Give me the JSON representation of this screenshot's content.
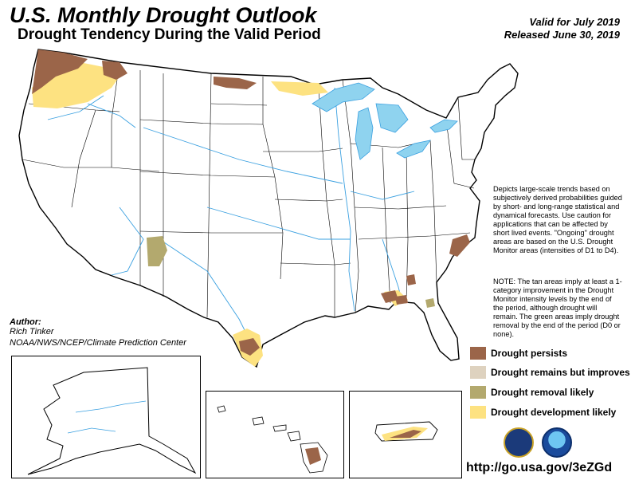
{
  "header": {
    "title": "U.S. Monthly Drought Outlook",
    "subtitle": "Drought Tendency During the Valid Period",
    "valid": "Valid for July 2019",
    "released": "Released June 30, 2019"
  },
  "description": "Depicts large-scale trends based on subjectively derived probabilities guided by short- and long-range statistical and dynamical forecasts. Use caution for applications that can be affected by short lived events. \"Ongoing\" drought areas are based on the U.S. Drought Monitor areas (intensities of D1 to D4).",
  "note": "NOTE: The tan areas imply at least a 1-category improvement in the Drought Monitor intensity levels by the end of the period, although drought will remain. The green areas imply drought removal by the end of the period (D0 or none).",
  "author": {
    "label": "Author:",
    "name": "Rich Tinker",
    "org": "NOAA/NWS/NCEP/Climate Prediction Center"
  },
  "legend": [
    {
      "label": "Drought persists",
      "color": "#9b6549"
    },
    {
      "label": "Drought remains but improves",
      "color": "#ded2bf"
    },
    {
      "label": "Drought removal likely",
      "color": "#b3a96e"
    },
    {
      "label": "Drought development likely",
      "color": "#fde281"
    }
  ],
  "url": "http://go.usa.gov/3eZGd",
  "colors": {
    "water": "#8fd3ef",
    "rivers": "#3aa0e0",
    "persists": "#9b6549",
    "removal": "#b3a96e",
    "development": "#fde281"
  },
  "logos": [
    "doc-seal-icon",
    "noaa-logo-icon"
  ]
}
